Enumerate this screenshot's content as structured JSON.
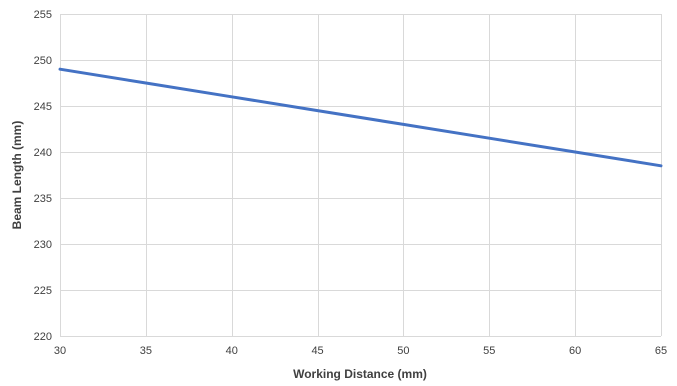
{
  "chart_data": {
    "type": "line",
    "title": "",
    "xlabel": "Working Distance (mm)",
    "ylabel": "Beam Length (mm)",
    "xlim": [
      30,
      65
    ],
    "ylim": [
      220,
      255
    ],
    "x_ticks": [
      30,
      35,
      40,
      45,
      50,
      55,
      60,
      65
    ],
    "y_ticks": [
      220,
      225,
      230,
      235,
      240,
      245,
      250,
      255
    ],
    "grid": true,
    "legend": "none",
    "series": [
      {
        "color": "#4472c4",
        "x": [
          30,
          35,
          40,
          45,
          50,
          55,
          60,
          65
        ],
        "y": [
          249,
          247.5,
          246,
          244.5,
          243,
          241.5,
          240,
          238.5
        ]
      }
    ]
  }
}
